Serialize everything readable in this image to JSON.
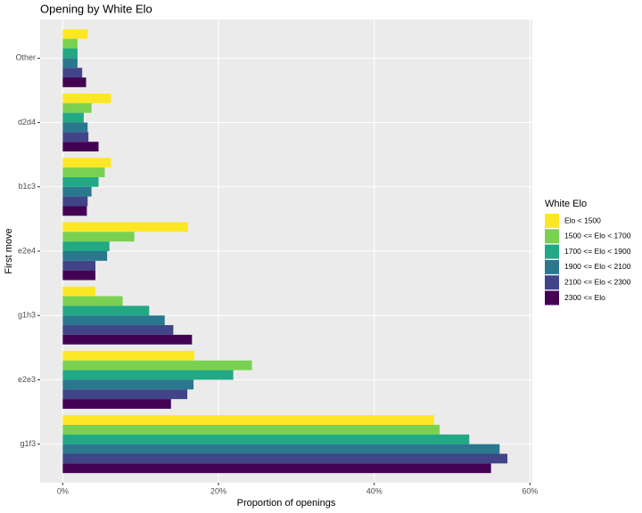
{
  "chart_data": {
    "type": "barh",
    "title": "Opening by White Elo",
    "x_label": "Proportion of openings",
    "y_label": "First move",
    "legend_title": "White Elo",
    "legend": "right",
    "grid": true,
    "categories": [
      "Other",
      "d2d4",
      "b1c3",
      "e2e4",
      "g1h3",
      "e2e3",
      "g1f3"
    ],
    "series": [
      {
        "name": "Elo < 1500",
        "color": "#FDE725",
        "values": [
          3.2,
          6.2,
          6.2,
          16.1,
          4.2,
          16.9,
          47.7
        ]
      },
      {
        "name": "1500 <= Elo < 1700",
        "color": "#7AD151",
        "values": [
          1.9,
          3.7,
          5.4,
          9.2,
          7.7,
          24.3,
          48.4
        ]
      },
      {
        "name": "1700 <= Elo < 1900",
        "color": "#22A884",
        "values": [
          1.9,
          2.7,
          4.6,
          6.0,
          11.1,
          21.9,
          52.2
        ]
      },
      {
        "name": "1900 <= Elo < 2100",
        "color": "#2A788E",
        "values": [
          1.9,
          3.2,
          3.7,
          5.7,
          13.1,
          16.8,
          56.1
        ]
      },
      {
        "name": "2100 <= Elo < 2300",
        "color": "#414487",
        "values": [
          2.5,
          3.3,
          3.2,
          4.2,
          14.2,
          16.0,
          57.1
        ]
      },
      {
        "name": "2300 <= Elo",
        "color": "#440154",
        "values": [
          3.0,
          4.6,
          3.1,
          4.2,
          16.6,
          13.9,
          55.0
        ]
      }
    ],
    "xlim": [
      -2.9,
      60.3
    ],
    "xticks": [
      {
        "value": 0,
        "label": "0%"
      },
      {
        "value": 20,
        "label": "20%"
      },
      {
        "value": 40,
        "label": "40%"
      },
      {
        "value": 60,
        "label": "60%"
      }
    ]
  }
}
